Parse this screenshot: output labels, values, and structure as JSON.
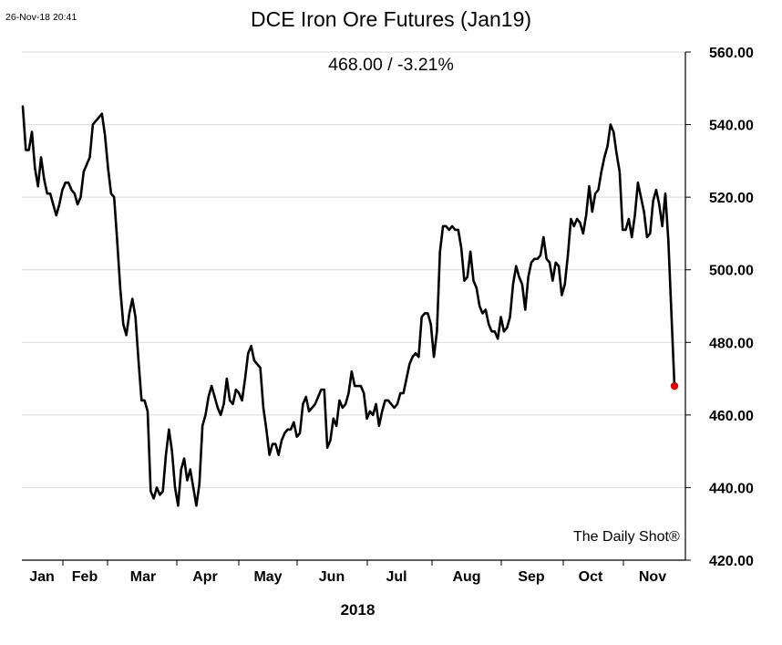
{
  "header": {
    "timestamp": "26-Nov-18 20:41",
    "title": "DCE Iron Ore Futures (Jan19)",
    "subtitle": "468.00  /  -3.21%"
  },
  "watermark": "The Daily Shot®",
  "colors": {
    "line": "#000000",
    "last_point": "#e00000",
    "grid": "#d9d9d9",
    "axis": "#000000"
  },
  "chart_data": {
    "type": "line",
    "title": "DCE Iron Ore Futures (Jan19)",
    "subtitle": "468.00  /  -3.21%",
    "xlabel": "2018",
    "ylabel": "",
    "ylim": [
      420,
      560
    ],
    "yticks": [
      420,
      440,
      460,
      480,
      500,
      520,
      540,
      560
    ],
    "ytick_labels": [
      "420.00",
      "440.00",
      "460.00",
      "480.00",
      "500.00",
      "520.00",
      "540.00",
      "560.00"
    ],
    "y_axis_side": "right",
    "grid": true,
    "month_labels": [
      "Jan",
      "Feb",
      "Mar",
      "Apr",
      "May",
      "Jun",
      "Jul",
      "Aug",
      "Sep",
      "Oct",
      "Nov"
    ],
    "last_value": 468.0,
    "last_change_pct": -3.21,
    "series": [
      {
        "values": [
          545,
          533,
          533,
          538,
          528,
          523,
          531,
          525,
          521,
          521,
          518,
          515,
          518,
          522,
          524,
          524,
          522,
          521,
          518,
          520,
          527,
          529,
          531,
          540,
          541,
          542,
          543,
          537,
          528,
          521,
          520,
          508,
          495,
          485,
          482,
          488,
          492,
          487,
          475,
          464,
          464,
          461,
          439,
          437,
          440,
          438,
          439,
          449,
          456,
          450,
          440,
          435,
          445,
          448,
          442,
          445,
          440,
          435,
          441,
          457,
          460,
          465,
          468,
          465,
          462,
          460,
          463,
          470,
          464,
          463,
          467,
          466,
          464,
          470,
          477,
          479,
          475,
          474,
          473,
          462,
          456,
          449,
          452,
          452,
          449,
          453,
          455,
          456,
          456,
          458,
          454,
          455,
          463,
          465,
          461,
          462,
          463,
          465,
          467,
          467,
          451,
          453,
          459,
          457,
          464,
          462,
          463,
          466,
          472,
          468,
          468,
          468,
          466,
          459,
          461,
          460,
          463,
          457,
          461,
          464,
          464,
          463,
          462,
          463,
          466,
          466,
          470,
          474,
          476,
          477,
          476,
          487,
          488,
          488,
          485,
          476,
          483,
          505,
          512,
          512,
          511,
          512,
          511,
          511,
          506,
          497,
          498,
          505,
          497,
          495,
          490,
          488,
          489,
          485,
          483,
          483,
          481,
          487,
          483,
          484,
          487,
          496,
          501,
          498,
          496,
          489,
          498,
          502,
          503,
          503,
          504,
          509,
          503,
          502,
          497,
          502,
          501,
          493,
          496,
          504,
          514,
          512,
          514,
          513,
          510,
          515,
          523,
          516,
          521,
          522,
          527,
          531,
          534,
          540,
          538,
          532,
          527,
          511,
          511,
          514,
          509,
          515,
          524,
          520,
          516,
          509,
          510,
          519,
          522,
          518,
          512,
          521,
          508,
          488,
          468
        ]
      }
    ]
  }
}
